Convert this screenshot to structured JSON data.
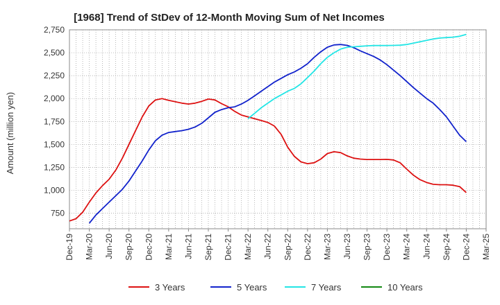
{
  "chart_data": {
    "type": "line",
    "title": "[1968]  Trend of StDev of 12-Month Moving Sum of Net Incomes",
    "ylabel": "Amount (million yen)",
    "xlabel": "",
    "ylim": [
      580,
      2750
    ],
    "yticks": [
      750,
      1000,
      1250,
      1500,
      1750,
      2000,
      2250,
      2500,
      2750
    ],
    "ytick_labels": [
      "750",
      "1,000",
      "1,250",
      "1,500",
      "1,750",
      "2,000",
      "2,250",
      "2,500",
      "2,750"
    ],
    "xticks": [
      "Dec-19",
      "Mar-20",
      "Jun-20",
      "Sep-20",
      "Dec-20",
      "Mar-21",
      "Jun-21",
      "Sep-21",
      "Dec-21",
      "Mar-22",
      "Jun-22",
      "Sep-22",
      "Dec-22",
      "Mar-23",
      "Jun-23",
      "Sep-23",
      "Dec-23",
      "Mar-24",
      "Jun-24",
      "Sep-24",
      "Dec-24",
      "Mar-25"
    ],
    "grid": true,
    "legend_position": "bottom",
    "series": [
      {
        "name": "3 Years",
        "color": "#dd1111",
        "x": [
          "2019-12",
          "2020-01",
          "2020-02",
          "2020-03",
          "2020-04",
          "2020-05",
          "2020-06",
          "2020-07",
          "2020-08",
          "2020-09",
          "2020-10",
          "2020-11",
          "2020-12",
          "2021-01",
          "2021-02",
          "2021-03",
          "2021-04",
          "2021-05",
          "2021-06",
          "2021-07",
          "2021-08",
          "2021-09",
          "2021-10",
          "2021-11",
          "2021-12",
          "2022-01",
          "2022-02",
          "2022-03",
          "2022-04",
          "2022-05",
          "2022-06",
          "2022-07",
          "2022-08",
          "2022-09",
          "2022-10",
          "2022-11",
          "2022-12",
          "2023-01",
          "2023-02",
          "2023-03",
          "2023-04",
          "2023-05",
          "2023-06",
          "2023-07",
          "2023-08",
          "2023-09",
          "2023-10",
          "2023-11",
          "2023-12",
          "2024-01",
          "2024-02",
          "2024-03",
          "2024-04",
          "2024-05",
          "2024-06",
          "2024-07",
          "2024-08",
          "2024-09",
          "2024-10",
          "2024-11",
          "2024-12"
        ],
        "values": [
          665,
          690,
          760,
          870,
          970,
          1050,
          1120,
          1220,
          1350,
          1500,
          1650,
          1800,
          1920,
          1985,
          2000,
          1980,
          1965,
          1950,
          1940,
          1950,
          1970,
          1995,
          1985,
          1945,
          1910,
          1860,
          1820,
          1800,
          1780,
          1760,
          1740,
          1700,
          1610,
          1470,
          1370,
          1310,
          1290,
          1300,
          1340,
          1400,
          1420,
          1410,
          1375,
          1350,
          1340,
          1335,
          1335,
          1335,
          1337,
          1330,
          1300,
          1230,
          1165,
          1115,
          1085,
          1065,
          1060,
          1060,
          1055,
          1040,
          975
        ]
      },
      {
        "name": "5 Years",
        "color": "#1122cc",
        "x": [
          "2020-03",
          "2020-04",
          "2020-05",
          "2020-06",
          "2020-07",
          "2020-08",
          "2020-09",
          "2020-10",
          "2020-11",
          "2020-12",
          "2021-01",
          "2021-02",
          "2021-03",
          "2021-04",
          "2021-05",
          "2021-06",
          "2021-07",
          "2021-08",
          "2021-09",
          "2021-10",
          "2021-11",
          "2021-12",
          "2022-01",
          "2022-02",
          "2022-03",
          "2022-04",
          "2022-05",
          "2022-06",
          "2022-07",
          "2022-08",
          "2022-09",
          "2022-10",
          "2022-11",
          "2022-12",
          "2023-01",
          "2023-02",
          "2023-03",
          "2023-04",
          "2023-05",
          "2023-06",
          "2023-07",
          "2023-08",
          "2023-09",
          "2023-10",
          "2023-11",
          "2023-12",
          "2024-01",
          "2024-02",
          "2024-03",
          "2024-04",
          "2024-05",
          "2024-06",
          "2024-07",
          "2024-08",
          "2024-09",
          "2024-10",
          "2024-11",
          "2024-12"
        ],
        "values": [
          640,
          730,
          800,
          870,
          940,
          1010,
          1100,
          1210,
          1320,
          1440,
          1540,
          1600,
          1630,
          1640,
          1650,
          1665,
          1690,
          1730,
          1790,
          1850,
          1880,
          1900,
          1910,
          1940,
          1980,
          2030,
          2080,
          2130,
          2180,
          2220,
          2260,
          2290,
          2330,
          2380,
          2450,
          2510,
          2560,
          2585,
          2590,
          2580,
          2555,
          2520,
          2490,
          2460,
          2420,
          2370,
          2310,
          2250,
          2185,
          2120,
          2060,
          2000,
          1950,
          1880,
          1800,
          1700,
          1600,
          1530
        ]
      },
      {
        "name": "7 Years",
        "color": "#22e5e5",
        "x": [
          "2022-03",
          "2022-04",
          "2022-05",
          "2022-06",
          "2022-07",
          "2022-08",
          "2022-09",
          "2022-10",
          "2022-11",
          "2022-12",
          "2023-01",
          "2023-02",
          "2023-03",
          "2023-04",
          "2023-05",
          "2023-06",
          "2023-07",
          "2023-08",
          "2023-09",
          "2023-10",
          "2023-11",
          "2023-12",
          "2024-01",
          "2024-02",
          "2024-03",
          "2024-04",
          "2024-05",
          "2024-06",
          "2024-07",
          "2024-08",
          "2024-09",
          "2024-10",
          "2024-11",
          "2024-12"
        ],
        "values": [
          1780,
          1840,
          1900,
          1950,
          2000,
          2040,
          2080,
          2110,
          2160,
          2230,
          2300,
          2380,
          2450,
          2500,
          2540,
          2560,
          2565,
          2570,
          2575,
          2578,
          2578,
          2578,
          2580,
          2582,
          2590,
          2605,
          2620,
          2635,
          2650,
          2660,
          2665,
          2670,
          2680,
          2700
        ]
      },
      {
        "name": "10 Years",
        "color": "#118811",
        "x": [],
        "values": []
      }
    ]
  }
}
